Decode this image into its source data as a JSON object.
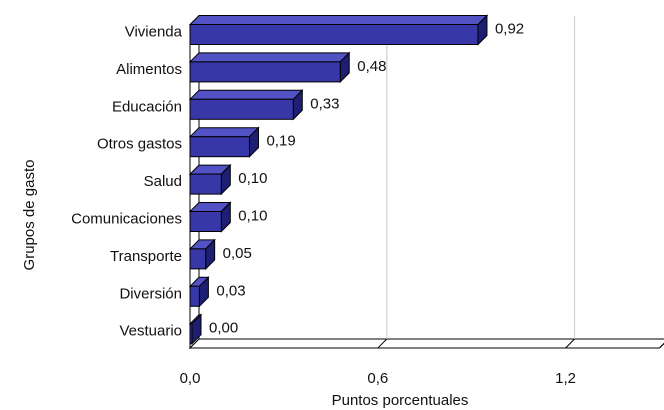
{
  "chart_data": {
    "type": "bar",
    "orientation": "horizontal",
    "style": "3d",
    "categories": [
      "Vivienda",
      "Alimentos",
      "Educación",
      "Otros gastos",
      "Salud",
      "Comunicaciones",
      "Transporte",
      "Diversión",
      "Vestuario"
    ],
    "values": [
      0.92,
      0.48,
      0.33,
      0.19,
      0.1,
      0.1,
      0.05,
      0.03,
      0.0
    ],
    "value_labels": [
      "0,92",
      "0,48",
      "0,33",
      "0,19",
      "0,10",
      "0,10",
      "0,05",
      "0,03",
      "0,00"
    ],
    "xlabel": "Puntos porcentuales",
    "ylabel": "Grupos de gasto",
    "xlim": [
      0,
      1.5
    ],
    "xticks": [
      0,
      0.6,
      1.2
    ],
    "xtick_labels": [
      "0,0",
      "0,6",
      "1,2"
    ],
    "grid": "vertical",
    "legend": "none",
    "colors": {
      "bar_front": "#3737a8",
      "bar_top": "#5252c4",
      "bar_side": "#1e1e72",
      "bar_stroke": "#000000",
      "grid": "#c8c8c8",
      "axis": "#000000"
    }
  }
}
